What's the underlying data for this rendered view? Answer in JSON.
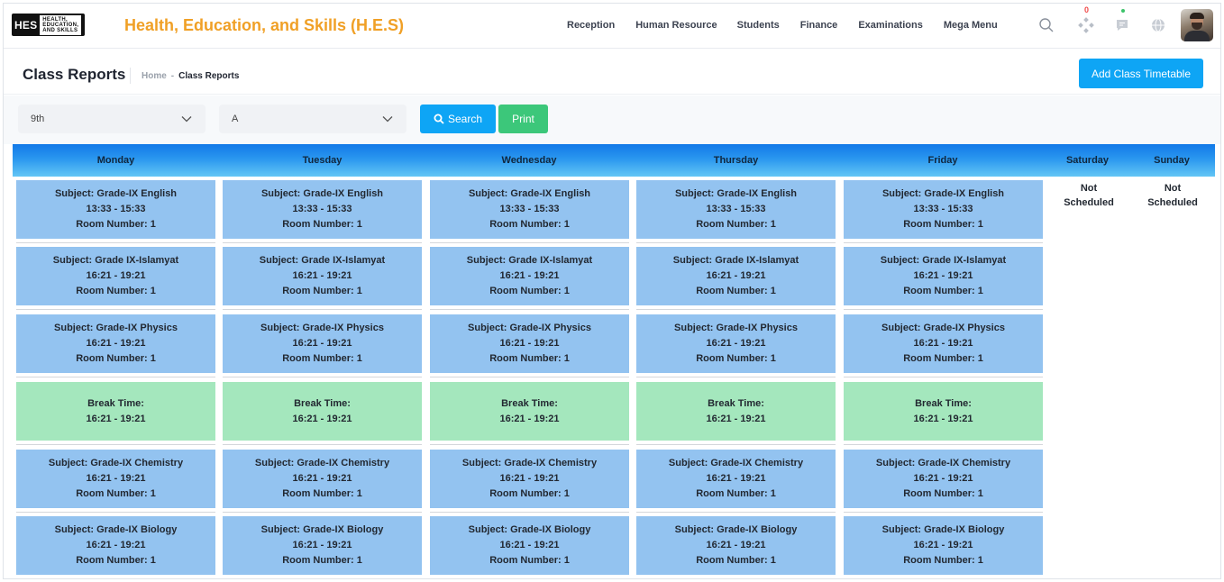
{
  "header": {
    "logo_mark": "HES",
    "logo_lines": [
      "HEALTH,",
      "EDUCATION,",
      "AND SKILLS"
    ],
    "brand": "Health, Education, and Skills (H.E.S)",
    "nav": [
      "Reception",
      "Human Resource",
      "Students",
      "Finance",
      "Examinations",
      "Mega Menu"
    ],
    "notification_count": "0",
    "icons": [
      "search-icon",
      "apps-icon",
      "chat-icon",
      "globe-icon"
    ]
  },
  "page": {
    "title": "Class Reports",
    "breadcrumb_home": "Home",
    "breadcrumb_sep": "-",
    "breadcrumb_current": "Class Reports",
    "add_button": "Add Class Timetable"
  },
  "filters": {
    "class_value": "9th",
    "section_value": "A",
    "search_label": "Search",
    "print_label": "Print"
  },
  "timetable": {
    "days": [
      "Monday",
      "Tuesday",
      "Wednesday",
      "Thursday",
      "Friday",
      "Saturday",
      "Sunday"
    ],
    "not_scheduled": "Not Scheduled",
    "slots": [
      {
        "lines": [
          "Subject: Grade-IX English",
          "13:33 - 15:33",
          "Room Number: 1"
        ],
        "type": "class"
      },
      {
        "lines": [
          "Subject: Grade IX-Islamyat",
          "16:21 - 19:21",
          "Room Number: 1"
        ],
        "type": "class"
      },
      {
        "lines": [
          "Subject: Grade-IX Physics",
          "16:21 - 19:21",
          "Room Number: 1"
        ],
        "type": "class"
      },
      {
        "lines": [
          "Break Time:",
          "16:21 - 19:21"
        ],
        "type": "break"
      },
      {
        "lines": [
          "Subject: Grade-IX Chemistry",
          "16:21 - 19:21",
          "Room Number: 1"
        ],
        "type": "class"
      },
      {
        "lines": [
          "Subject: Grade-IX Biology",
          "16:21 - 19:21",
          "Room Number: 1"
        ],
        "type": "class"
      }
    ]
  },
  "colors": {
    "brand": "#f0a026",
    "primary": "#0ea5f5",
    "success": "#3cc77a",
    "class_slot": "#93c3f0",
    "break_slot": "#a4e7bd"
  }
}
